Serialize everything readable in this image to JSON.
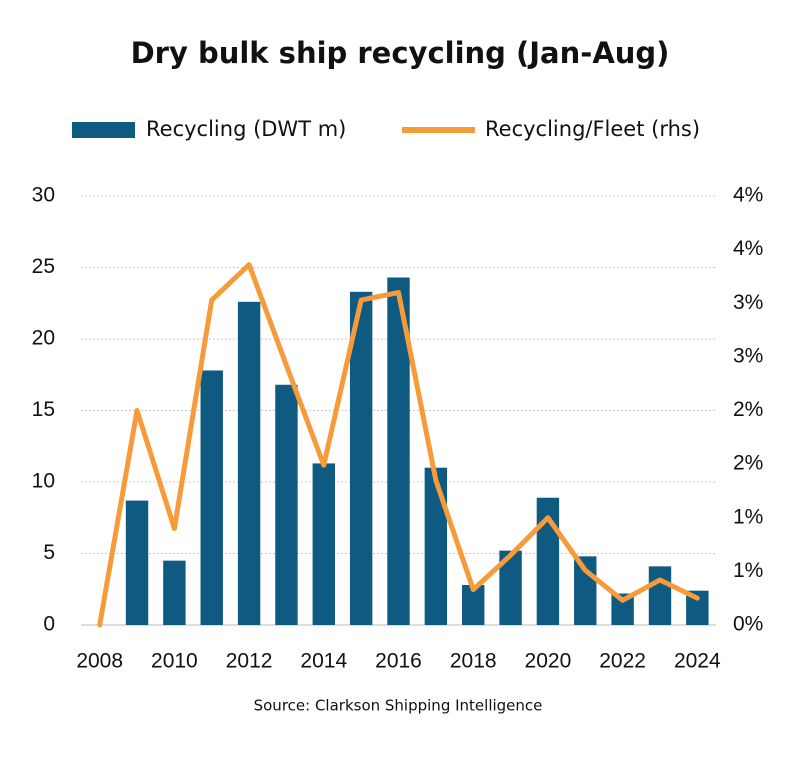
{
  "chart_data": {
    "type": "bar-line",
    "title": "Dry bulk ship recycling (Jan-Aug)",
    "source": "Source: Clarkson Shipping Intelligence",
    "categories": [
      "2008",
      null,
      "2010",
      null,
      "2012",
      null,
      "2014",
      null,
      "2016",
      null,
      "2018",
      null,
      "2020",
      null,
      "2022",
      null,
      "2024"
    ],
    "series": [
      {
        "name": "Recycling (DWT m)",
        "type": "bar",
        "color": "#0e5a80",
        "values": [
          0,
          8.7,
          4.5,
          17.8,
          22.6,
          16.8,
          11.3,
          23.3,
          24.3,
          11.0,
          2.8,
          5.2,
          8.9,
          4.8,
          2.2,
          4.1,
          2.4
        ]
      },
      {
        "name": "Recycling/Fleet (rhs)",
        "type": "line",
        "axis": "y2",
        "color": "#f79a3a",
        "values": [
          0,
          2.0,
          0.9,
          3.03,
          3.36,
          2.42,
          1.49,
          3.03,
          3.1,
          1.35,
          0.33,
          0.65,
          1.0,
          0.51,
          0.23,
          0.42,
          0.25
        ]
      }
    ],
    "ylim": [
      0,
      30
    ],
    "yticks": [
      0,
      5,
      10,
      15,
      20,
      25,
      30
    ],
    "y2lim": [
      0,
      4
    ],
    "y2ticks": [
      {
        "value": 0,
        "label": "0%"
      },
      {
        "value": 0.5,
        "label": "1%"
      },
      {
        "value": 1,
        "label": "1%"
      },
      {
        "value": 1.5,
        "label": "2%"
      },
      {
        "value": 2,
        "label": "2%"
      },
      {
        "value": 2.5,
        "label": "3%"
      },
      {
        "value": 3,
        "label": "3%"
      },
      {
        "value": 3.5,
        "label": "4%"
      },
      {
        "value": 4,
        "label": "4%"
      }
    ],
    "grid": true
  }
}
